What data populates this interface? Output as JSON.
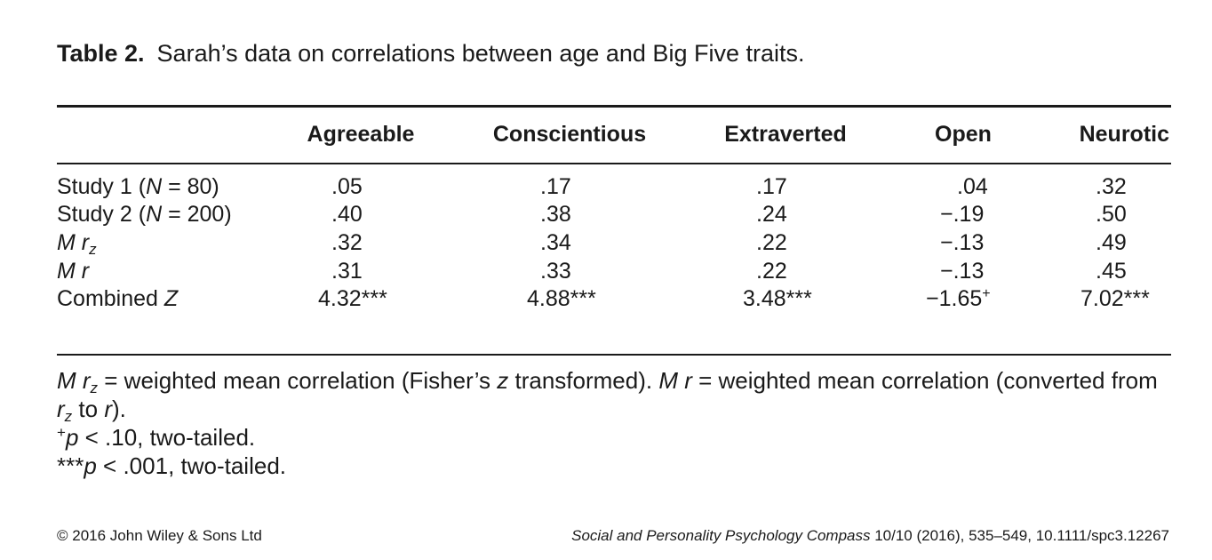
{
  "caption": {
    "label": "Table 2.",
    "text": "Sarah’s data on correlations between age and Big Five traits."
  },
  "table": {
    "columns": [
      "Agreeable",
      "Conscientious",
      "Extraverted",
      "Open",
      "Neurotic"
    ],
    "rows": [
      {
        "label_pre": "Study 1 (",
        "label_italic": "N",
        "label_post": " = 80)",
        "label_sub": "",
        "values": [
          ".05",
          ".17",
          ".17",
          ".04",
          ".32"
        ],
        "sups": [
          "",
          "",
          "",
          "",
          ""
        ]
      },
      {
        "label_pre": "Study 2 (",
        "label_italic": "N",
        "label_post": " = 200)",
        "label_sub": "",
        "values": [
          ".40",
          ".38",
          ".24",
          "−.19",
          ".50"
        ],
        "sups": [
          "",
          "",
          "",
          "",
          ""
        ]
      },
      {
        "label_pre": "",
        "label_italic": "M r",
        "label_post": "",
        "label_sub": "z",
        "values": [
          ".32",
          ".34",
          ".22",
          "−.13",
          ".49"
        ],
        "sups": [
          "",
          "",
          "",
          "",
          ""
        ]
      },
      {
        "label_pre": "",
        "label_italic": "M r",
        "label_post": "",
        "label_sub": "",
        "values": [
          ".31",
          ".33",
          ".22",
          "−.13",
          ".45"
        ],
        "sups": [
          "",
          "",
          "",
          "",
          ""
        ]
      },
      {
        "label_pre": "Combined ",
        "label_italic": "Z",
        "label_post": "",
        "label_sub": "",
        "values": [
          "4.32***",
          "4.88***",
          "3.48***",
          "−1.65",
          "7.02***"
        ],
        "sups": [
          "",
          "",
          "",
          "+",
          ""
        ]
      }
    ]
  },
  "notes": {
    "line1": {
      "a_italic": "M r",
      "a_sub": "z",
      "b": " = weighted mean correlation (Fisher’s ",
      "c_italic": "z",
      "d": " transformed). ",
      "e_italic": "M r",
      "f": " = weighted mean correlation (converted from"
    },
    "line2": {
      "a_italic": "r",
      "a_sub": "z",
      "b": " to ",
      "c_italic": "r",
      "d": ")."
    },
    "line3": {
      "sup": "+",
      "p_italic": "p",
      "text": " < .10, two-tailed."
    },
    "line4": {
      "stars": "***",
      "p_italic": "p",
      "text": " < .001, two-tailed."
    }
  },
  "footer": {
    "copyright": "© 2016 John Wiley & Sons Ltd",
    "journal": "Social and Personality Psychology Compass",
    "citation": " 10/10 (2016), 535–549, 10.1111/spc3.12267"
  }
}
